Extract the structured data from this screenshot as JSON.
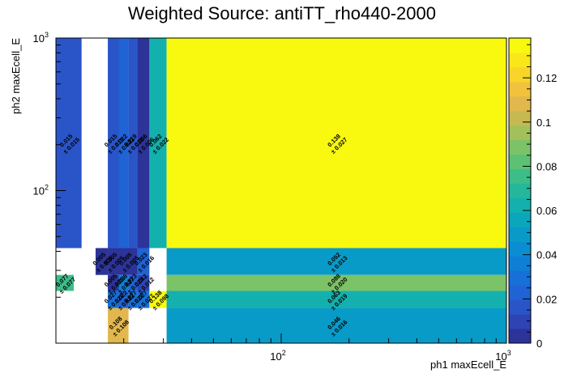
{
  "chart_data": {
    "type": "heatmap",
    "title": "Weighted Source: antiTT_rho440-2000",
    "xlabel": "ph1 maxEcell_E",
    "ylabel": "ph2 maxEcell_E",
    "x_scale": "log",
    "y_scale": "log",
    "xlim": [
      10,
      1000
    ],
    "ylim": [
      10,
      1000
    ],
    "x_tick_labels": [
      {
        "value": 100,
        "base": "10",
        "exp": "2"
      },
      {
        "value": 1000,
        "base": "10",
        "exp": "3"
      }
    ],
    "y_tick_labels": [
      {
        "value": 100,
        "base": "10",
        "exp": "2"
      },
      {
        "value": 1000,
        "base": "10",
        "exp": "3"
      }
    ],
    "colorbar": {
      "range": [
        0,
        0.138
      ],
      "ticks": [
        0,
        0.02,
        0.04,
        0.06,
        0.08,
        0.1,
        0.12
      ],
      "tick_labels": [
        "0",
        "0.02",
        "0.04",
        "0.06",
        "0.08",
        "0.1",
        "0.12"
      ],
      "palette": [
        "#2c3399",
        "#2e44b4",
        "#2a55c8",
        "#1f63d5",
        "#1670d8",
        "#0f7fd6",
        "#0a8ed1",
        "#099bc8",
        "#0aa7bc",
        "#13b0ad",
        "#24b79b",
        "#3dbd88",
        "#5bc175",
        "#7cc367",
        "#a3c05b",
        "#c7b952",
        "#e2b84e",
        "#f2c23d",
        "#f9d52a",
        "#f9e71a",
        "#f9f90f"
      ]
    },
    "cells": [
      {
        "x0": 10,
        "x1": 13,
        "y0": 42,
        "y1": 1000,
        "value": 0.015,
        "label": "0.015",
        "err": "± 0.015"
      },
      {
        "x0": 17,
        "x1": 19,
        "y0": 42,
        "y1": 1000,
        "value": 0.015,
        "label": "0.015",
        "err": "± 0.015"
      },
      {
        "x0": 19,
        "x1": 21,
        "y0": 42,
        "y1": 1000,
        "value": 0.022,
        "label": "0.022",
        "err": "± 0.022"
      },
      {
        "x0": 21,
        "x1": 23,
        "y0": 42,
        "y1": 1000,
        "value": 0.019,
        "label": "0.019",
        "err": "± 0.019"
      },
      {
        "x0": 23,
        "x1": 26,
        "y0": 42,
        "y1": 1000,
        "value": 0.006,
        "label": "0.006",
        "err": "± 0.006"
      },
      {
        "x0": 26,
        "x1": 31,
        "y0": 42,
        "y1": 1000,
        "value": 0.062,
        "label": "0.062",
        "err": "± 0.022"
      },
      {
        "x0": 31,
        "x1": 1000,
        "y0": 42,
        "y1": 1000,
        "value": 0.138,
        "label": "0.138",
        "err": "± 0.027"
      },
      {
        "x0": 10,
        "x1": 12,
        "y0": 22,
        "y1": 28,
        "value": 0.077,
        "label": "0.077",
        "err": "± 0.077"
      },
      {
        "x0": 15,
        "x1": 17,
        "y0": 28,
        "y1": 42,
        "value": 0.005,
        "label": "0.005",
        "err": "± 0.005"
      },
      {
        "x0": 17,
        "x1": 19,
        "y0": 28,
        "y1": 42,
        "value": 0.005,
        "label": "0.005",
        "err": "± 0.005"
      },
      {
        "x0": 19,
        "x1": 23,
        "y0": 28,
        "y1": 42,
        "value": 0.005,
        "label": "0.005",
        "err": "± 0.005"
      },
      {
        "x0": 23,
        "x1": 26,
        "y0": 28,
        "y1": 42,
        "value": 0.023,
        "label": "0.023",
        "err": "± 0.016"
      },
      {
        "x0": 17,
        "x1": 19,
        "y0": 22,
        "y1": 28,
        "value": 0.005,
        "label": "0.005",
        "err": "± 0.005"
      },
      {
        "x0": 19,
        "x1": 21,
        "y0": 22,
        "y1": 28,
        "value": 0.036,
        "label": "0.036",
        "err": "± 0.027"
      },
      {
        "x0": 21,
        "x1": 23,
        "y0": 22,
        "y1": 28,
        "value": 0.023,
        "label": "0.023",
        "err": "± 0.023"
      },
      {
        "x0": 23,
        "x1": 26,
        "y0": 22,
        "y1": 28,
        "value": 0.012,
        "label": "0.012",
        "err": "± 0.012"
      },
      {
        "x0": 17,
        "x1": 19,
        "y0": 17,
        "y1": 22,
        "value": 0.027,
        "label": "0.027",
        "err": "± 0.027"
      },
      {
        "x0": 19,
        "x1": 21,
        "y0": 17,
        "y1": 22,
        "value": 0.022,
        "label": "0.022",
        "err": "± 0.022"
      },
      {
        "x0": 21,
        "x1": 23,
        "y0": 17,
        "y1": 22,
        "value": 0.027,
        "label": "0.027",
        "err": "± 0.027"
      },
      {
        "x0": 23,
        "x1": 26,
        "y0": 17,
        "y1": 22,
        "value": 0.027,
        "label": "0.027",
        "err": "± 0.027"
      },
      {
        "x0": 26,
        "x1": 31,
        "y0": 17,
        "y1": 22,
        "value": 0.138,
        "label": "0.138",
        "err": "± 0.098"
      },
      {
        "x0": 17,
        "x1": 21,
        "y0": 10,
        "y1": 17,
        "value": 0.108,
        "label": "0.108",
        "err": "± 0.108"
      },
      {
        "x0": 31,
        "x1": 1000,
        "y0": 28,
        "y1": 42,
        "value": 0.052,
        "label": "0.052",
        "err": "± 0.013"
      },
      {
        "x0": 31,
        "x1": 1000,
        "y0": 22,
        "y1": 28,
        "value": 0.088,
        "label": "0.088",
        "err": "± 0.020"
      },
      {
        "x0": 31,
        "x1": 1000,
        "y0": 17,
        "y1": 22,
        "value": 0.063,
        "label": "0.063",
        "err": "± 0.019"
      },
      {
        "x0": 31,
        "x1": 1000,
        "y0": 10,
        "y1": 17,
        "value": 0.046,
        "label": "0.046",
        "err": "± 0.016"
      }
    ]
  }
}
